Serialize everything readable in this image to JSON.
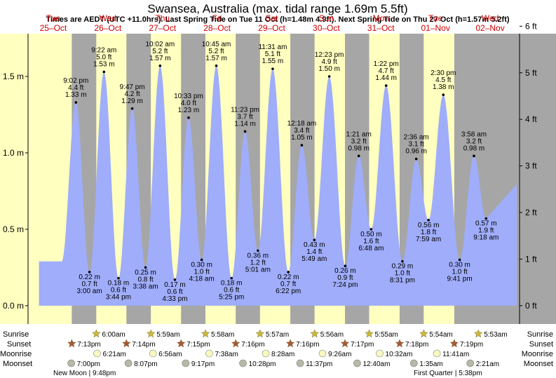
{
  "header": {
    "title": "Swansea, Australia (max. tidal range 1.69m 5.5ft)",
    "subtitle": "Times are AEDT (UTC +11.0hrs). Last Spring Tide on Tue 11 Oct (h=1.48m 4.9ft). Next Spring Tide on Thu 27 Oct (h=1.57m 5.2ft)"
  },
  "days": [
    {
      "name": "Tue",
      "date": "25–Oct"
    },
    {
      "name": "Wed",
      "date": "26–Oct"
    },
    {
      "name": "Thu",
      "date": "27–Oct"
    },
    {
      "name": "Fri",
      "date": "28–Oct"
    },
    {
      "name": "Sat",
      "date": "29–Oct"
    },
    {
      "name": "Sun",
      "date": "30–Oct"
    },
    {
      "name": "Mon",
      "date": "31–Oct"
    },
    {
      "name": "Tue",
      "date": "01–Nov"
    },
    {
      "name": "Wed",
      "date": "02–Nov"
    }
  ],
  "colors": {
    "day_bg": "#ffffc0",
    "night_bg": "#a6a6a6",
    "tide_fill": "#9fadfa",
    "day_header": "#cc0000",
    "sun_star": "#c9b83c",
    "sunset_star": "#a35b36",
    "moon_circle": "#f8f8c0",
    "moonset_circle": "#b8b8a8"
  },
  "chart_data": {
    "type": "area",
    "title": "Swansea, Australia (max. tidal range 1.69m 5.5ft)",
    "ylabel_left": "m",
    "ylabel_right": "ft",
    "ylim": [
      -0.12,
      1.78
    ],
    "y_ticks_m": [
      "0.0 m",
      "0.5 m",
      "1.0 m",
      "1.5 m"
    ],
    "y_ticks_ft": [
      "0 ft",
      "1 ft",
      "2 ft",
      "3 ft",
      "4 ft",
      "5 ft",
      "6 ft"
    ],
    "x_range_days": [
      "25-Oct 00:00",
      "02-Nov 24:00"
    ],
    "tides": [
      {
        "t": "25-Oct 21:02",
        "time": "9:02 pm",
        "m": 1.33,
        "m_label": "1.33 m",
        "ft_label": "4.4 ft",
        "type": "high"
      },
      {
        "t": "26-Oct 03:00",
        "time": "3:00 am",
        "m": 0.22,
        "m_label": "0.22 m",
        "ft_label": "0.7 ft",
        "type": "low"
      },
      {
        "t": "26-Oct 09:22",
        "time": "9:22 am",
        "m": 1.53,
        "m_label": "1.53 m",
        "ft_label": "5.0 ft",
        "type": "high"
      },
      {
        "t": "26-Oct 15:44",
        "time": "3:44 pm",
        "m": 0.18,
        "m_label": "0.18 m",
        "ft_label": "0.6 ft",
        "type": "low"
      },
      {
        "t": "26-Oct 21:47",
        "time": "9:47 pm",
        "m": 1.29,
        "m_label": "1.29 m",
        "ft_label": "4.2 ft",
        "type": "high"
      },
      {
        "t": "27-Oct 03:38",
        "time": "3:38 am",
        "m": 0.25,
        "m_label": "0.25 m",
        "ft_label": "0.8 ft",
        "type": "low"
      },
      {
        "t": "27-Oct 10:02",
        "time": "10:02 am",
        "m": 1.57,
        "m_label": "1.57 m",
        "ft_label": "5.2 ft",
        "type": "high"
      },
      {
        "t": "27-Oct 16:33",
        "time": "4:33 pm",
        "m": 0.17,
        "m_label": "0.17 m",
        "ft_label": "0.6 ft",
        "type": "low"
      },
      {
        "t": "27-Oct 22:33",
        "time": "10:33 pm",
        "m": 1.23,
        "m_label": "1.23 m",
        "ft_label": "4.0 ft",
        "type": "high"
      },
      {
        "t": "28-Oct 04:18",
        "time": "4:18 am",
        "m": 0.3,
        "m_label": "0.30 m",
        "ft_label": "1.0 ft",
        "type": "low"
      },
      {
        "t": "28-Oct 10:45",
        "time": "10:45 am",
        "m": 1.57,
        "m_label": "1.57 m",
        "ft_label": "5.2 ft",
        "type": "high"
      },
      {
        "t": "28-Oct 17:25",
        "time": "5:25 pm",
        "m": 0.18,
        "m_label": "0.18 m",
        "ft_label": "0.6 ft",
        "type": "low"
      },
      {
        "t": "28-Oct 23:23",
        "time": "11:23 pm",
        "m": 1.14,
        "m_label": "1.14 m",
        "ft_label": "3.7 ft",
        "type": "high"
      },
      {
        "t": "29-Oct 05:01",
        "time": "5:01 am",
        "m": 0.36,
        "m_label": "0.36 m",
        "ft_label": "1.2 ft",
        "type": "low"
      },
      {
        "t": "29-Oct 11:31",
        "time": "11:31 am",
        "m": 1.55,
        "m_label": "1.55 m",
        "ft_label": "5.1 ft",
        "type": "high"
      },
      {
        "t": "29-Oct 18:22",
        "time": "6:22 pm",
        "m": 0.22,
        "m_label": "0.22 m",
        "ft_label": "0.7 ft",
        "type": "low"
      },
      {
        "t": "30-Oct 00:18",
        "time": "12:18 am",
        "m": 1.05,
        "m_label": "1.05 m",
        "ft_label": "3.4 ft",
        "type": "high"
      },
      {
        "t": "30-Oct 05:49",
        "time": "5:49 am",
        "m": 0.43,
        "m_label": "0.43 m",
        "ft_label": "1.4 ft",
        "type": "low"
      },
      {
        "t": "30-Oct 12:23",
        "time": "12:23 pm",
        "m": 1.5,
        "m_label": "1.50 m",
        "ft_label": "4.9 ft",
        "type": "high"
      },
      {
        "t": "30-Oct 19:24",
        "time": "7:24 pm",
        "m": 0.26,
        "m_label": "0.26 m",
        "ft_label": "0.9 ft",
        "type": "low"
      },
      {
        "t": "31-Oct 01:21",
        "time": "1:21 am",
        "m": 0.98,
        "m_label": "0.98 m",
        "ft_label": "3.2 ft",
        "type": "high"
      },
      {
        "t": "31-Oct 06:48",
        "time": "6:48 am",
        "m": 0.5,
        "m_label": "0.50 m",
        "ft_label": "1.6 ft",
        "type": "low"
      },
      {
        "t": "31-Oct 13:22",
        "time": "1:22 pm",
        "m": 1.44,
        "m_label": "1.44 m",
        "ft_label": "4.7 ft",
        "type": "high"
      },
      {
        "t": "31-Oct 20:31",
        "time": "8:31 pm",
        "m": 0.29,
        "m_label": "0.29 m",
        "ft_label": "1.0 ft",
        "type": "low"
      },
      {
        "t": "01-Nov 02:36",
        "time": "2:36 am",
        "m": 0.96,
        "m_label": "0.96 m",
        "ft_label": "3.1 ft",
        "type": "high"
      },
      {
        "t": "01-Nov 07:59",
        "time": "7:59 am",
        "m": 0.56,
        "m_label": "0.56 m",
        "ft_label": "1.8 ft",
        "type": "low"
      },
      {
        "t": "01-Nov 14:30",
        "time": "2:30 pm",
        "m": 1.38,
        "m_label": "1.38 m",
        "ft_label": "4.5 ft",
        "type": "high"
      },
      {
        "t": "01-Nov 21:41",
        "time": "9:41 pm",
        "m": 0.3,
        "m_label": "0.30 m",
        "ft_label": "1.0 ft",
        "type": "low"
      },
      {
        "t": "02-Nov 03:58",
        "time": "3:58 am",
        "m": 0.98,
        "m_label": "0.98 m",
        "ft_label": "3.2 ft",
        "type": "high"
      },
      {
        "t": "02-Nov 09:18",
        "time": "9:18 am",
        "m": 0.57,
        "m_label": "0.57 m",
        "ft_label": "1.9 ft",
        "type": "low"
      }
    ],
    "sun_moon": {
      "sunrise": [
        "6:00am",
        "5:59am",
        "5:58am",
        "5:57am",
        "5:56am",
        "5:55am",
        "5:54am",
        "5:53am"
      ],
      "sunset": [
        "7:13pm",
        "7:14pm",
        "7:15pm",
        "7:16pm",
        "7:16pm",
        "7:17pm",
        "7:18pm",
        "7:19pm"
      ],
      "moonrise": [
        "6:21am",
        "6:56am",
        "7:38am",
        "8:28am",
        "9:26am",
        "10:32am",
        "11:41am"
      ],
      "moonset": [
        "7:00pm",
        "8:07pm",
        "9:17pm",
        "10:28pm",
        "11:37pm",
        "12:40am",
        "1:35am",
        "2:21am"
      ]
    }
  },
  "rows": {
    "sunrise": "Sunrise",
    "sunset": "Sunset",
    "moonrise": "Moonrise",
    "moonset": "Moonset"
  },
  "moon_phases": {
    "new": "New Moon | 9:48pm",
    "first_quarter": "First Quarter | 5:38pm"
  }
}
